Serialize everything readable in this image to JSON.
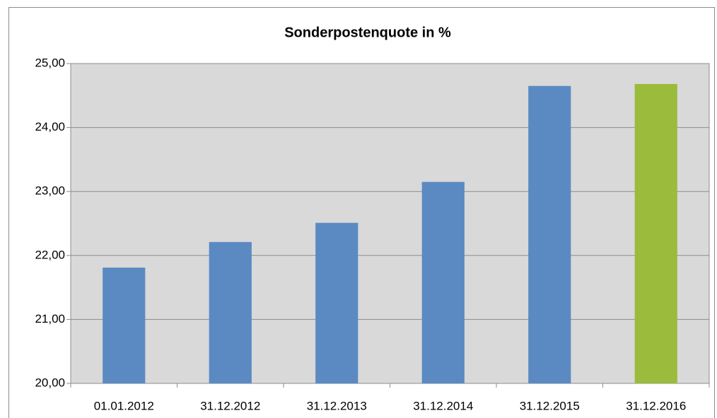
{
  "chart_data": {
    "type": "bar",
    "title": "Sonderpostenquote in %",
    "categories": [
      "01.01.2012",
      "31.12.2012",
      "31.12.2013",
      "31.12.2014",
      "31.12.2015",
      "31.12.2016"
    ],
    "values": [
      21.81,
      22.21,
      22.51,
      23.15,
      24.65,
      24.68
    ],
    "colors": [
      "#5b8ac3",
      "#5b8ac3",
      "#5b8ac3",
      "#5b8ac3",
      "#5b8ac3",
      "#9bbb3c"
    ],
    "ylim": [
      20,
      25
    ],
    "yticks": [
      {
        "value": 20,
        "label": "20,00"
      },
      {
        "value": 21,
        "label": "21,00"
      },
      {
        "value": 22,
        "label": "22,00"
      },
      {
        "value": 23,
        "label": "23,00"
      },
      {
        "value": 24,
        "label": "24,00"
      },
      {
        "value": 25,
        "label": "25,00"
      }
    ],
    "grid": true
  }
}
